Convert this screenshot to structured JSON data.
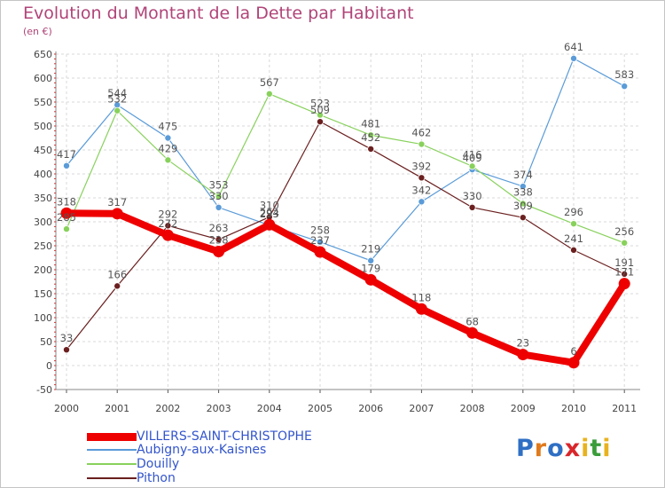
{
  "title": "Evolution du Montant de la Dette par Habitant",
  "subtitle": "(en €)",
  "logo": {
    "text": "Proxiti",
    "letter_colors": [
      "#2f6fc4",
      "#e07a1d",
      "#2f6fc4",
      "#d9262b",
      "#e8b21f",
      "#3a9d3a",
      "#e8b21f"
    ]
  },
  "chart_data": {
    "type": "line",
    "title": "Evolution du Montant de la Dette par Habitant",
    "subtitle": "(en €)",
    "categories": [
      "2000",
      "2001",
      "2002",
      "2003",
      "2004",
      "2005",
      "2006",
      "2007",
      "2008",
      "2009",
      "2010",
      "2011"
    ],
    "y_ticks": [
      "650",
      "600",
      "550",
      "500",
      "450",
      "400",
      "350",
      "300",
      "250",
      "200",
      "150",
      "100",
      "50",
      "0",
      "-50"
    ],
    "ylim": [
      -50,
      650
    ],
    "grid": "horizontal dashed",
    "legend_position": "bottom-left",
    "series": [
      {
        "name": "VILLERS-SAINT-CHRISTOPHE",
        "color": "#ee0000",
        "emphasis": true,
        "values": [
          318,
          317,
          272,
          238,
          294,
          237,
          179,
          118,
          68,
          23,
          6,
          171
        ],
        "labels": [
          "318",
          "317",
          "272",
          "238",
          "294",
          "237",
          "179",
          "118",
          "68",
          "23",
          "6",
          "171"
        ]
      },
      {
        "name": "Aubigny-aux-Kaisnes",
        "color": "#5a9bd8",
        "values": [
          417,
          544,
          475,
          330,
          293,
          258,
          219,
          342,
          409,
          374,
          641,
          583
        ],
        "labels": [
          "417",
          "544",
          "475",
          "330",
          "293",
          "258",
          "219",
          "342",
          "409",
          "374",
          "641",
          "583"
        ]
      },
      {
        "name": "Douilly",
        "color": "#88d15c",
        "values": [
          285,
          532,
          429,
          353,
          567,
          523,
          481,
          462,
          416,
          338,
          296,
          256
        ],
        "labels": [
          "285",
          "532",
          "429",
          "353",
          "567",
          "523",
          "481",
          "462",
          "416",
          "338",
          "296",
          "256"
        ]
      },
      {
        "name": "Pithon",
        "color": "#6b1f1f",
        "values": [
          33,
          166,
          292,
          263,
          310,
          509,
          452,
          392,
          330,
          309,
          241,
          191
        ],
        "labels": [
          "33",
          "166",
          "292",
          "263",
          "310",
          "509",
          "452",
          "392",
          "330",
          "309",
          "241",
          "191"
        ]
      }
    ]
  }
}
